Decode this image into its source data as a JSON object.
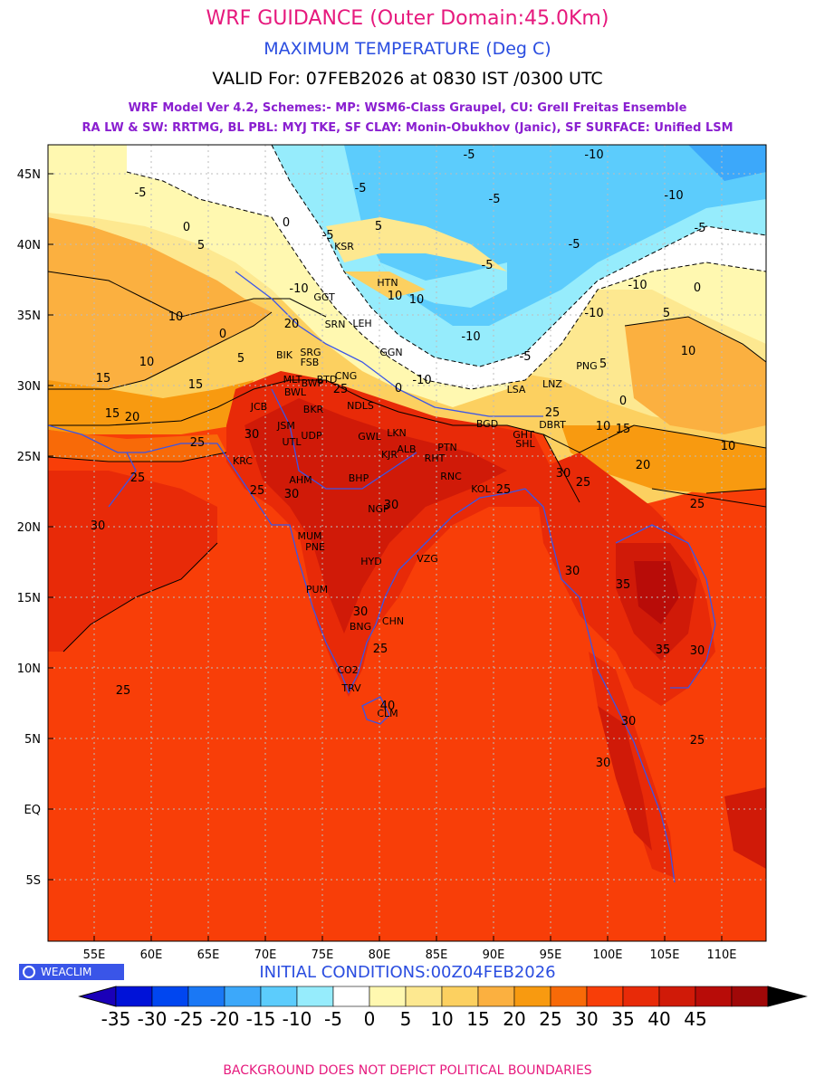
{
  "header": {
    "line1": "WRF GUIDANCE (Outer Domain:45.0Km)",
    "line2": "MAXIMUM TEMPERATURE (Deg C)",
    "line3": "VALID For: 07FEB2026 at 0830 IST /0300 UTC",
    "line4": "WRF Model Ver 4.2, Schemes:- MP: WSM6-Class Graupel, CU: Grell Freitas Ensemble",
    "line5": "RA LW & SW: RRTMG, BL PBL: MYJ TKE, SF CLAY: Monin-Obukhov (Janic), SF SURFACE: Unified LSM"
  },
  "colors": {
    "title_pink": "#e6197d",
    "title_blue": "#2a4de0",
    "scheme_purple": "#8a1fd0",
    "boundary_blue": "#3a55e8",
    "logo_bg": "#3a55e8"
  },
  "map": {
    "lat_labels": [
      "45N",
      "40N",
      "35N",
      "30N",
      "25N",
      "20N",
      "15N",
      "10N",
      "5N",
      "EQ",
      "5S"
    ],
    "lon_labels": [
      "55E",
      "60E",
      "65E",
      "70E",
      "75E",
      "80E",
      "85E",
      "90E",
      "95E",
      "100E",
      "105E",
      "110E"
    ],
    "stations": [
      "KSR",
      "HTN",
      "GGT",
      "SRN",
      "LEH",
      "BIK",
      "SRG",
      "FSB",
      "GGN",
      "MLT",
      "BWP",
      "BTD",
      "CNG",
      "BWL",
      "JCB",
      "BKR",
      "NDLS",
      "JSM",
      "UDP",
      "UTL",
      "GWL",
      "LKN",
      "PTN",
      "ALB",
      "KJR",
      "RHT",
      "KRC",
      "AHM",
      "BHP",
      "RNC",
      "NGP",
      "KOL",
      "MUM",
      "PNE",
      "HYD",
      "VZG",
      "PNG",
      "LSA",
      "LNZ",
      "BGD",
      "GHT",
      "SHL",
      "BNG",
      "CHN",
      "CO2",
      "TRV",
      "CLM",
      "PUM",
      "DBRT"
    ],
    "contour_labels": [
      "-10",
      "-5",
      "0",
      "5",
      "10",
      "15",
      "20",
      "25",
      "30",
      "35",
      "40"
    ]
  },
  "colorbar": {
    "tick_labels": [
      "-35",
      "-30",
      "-25",
      "-20",
      "-15",
      "-10",
      "-5",
      "0",
      "5",
      "10",
      "15",
      "20",
      "25",
      "30",
      "35",
      "40",
      "45"
    ],
    "colors": [
      "#1a00b8",
      "#0012d8",
      "#0046f0",
      "#1a78f5",
      "#3ca8fa",
      "#5cccfc",
      "#96ecfc",
      "#ffffff",
      "#fff8b0",
      "#fde890",
      "#fcd060",
      "#fbb040",
      "#f89a10",
      "#f86a08",
      "#f83e08",
      "#e82a08",
      "#d01a08",
      "#b80c08",
      "#a00808",
      "#000000"
    ]
  },
  "logo": "WEACLIM",
  "init": "INITIAL CONDITIONS:00Z04FEB2026",
  "footer": "BACKGROUND DOES NOT DEPICT POLITICAL BOUNDARIES"
}
